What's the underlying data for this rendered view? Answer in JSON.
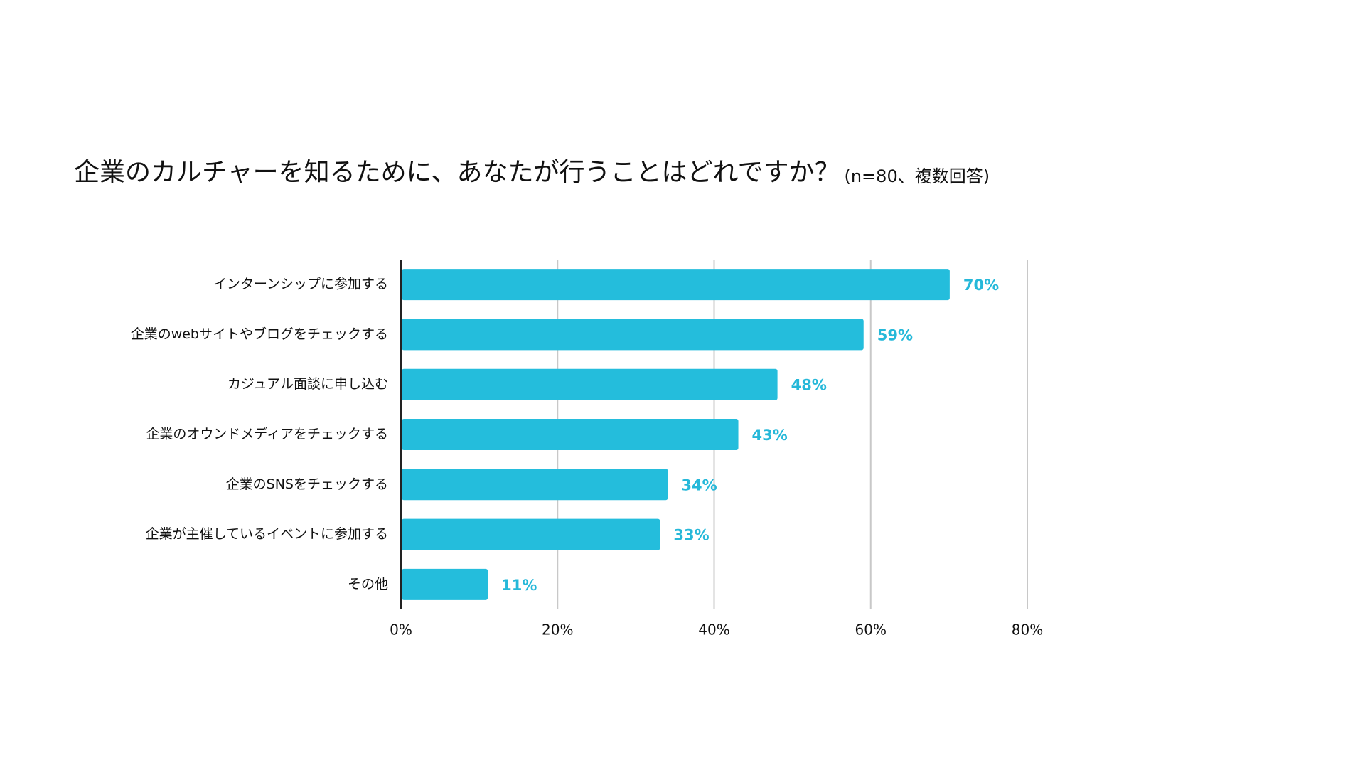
{
  "chart_data": {
    "type": "bar",
    "orientation": "horizontal",
    "title": "企業のカルチャーを知るために、あなたが行うことはどれですか？",
    "subtitle": "(n=80、複数回答)",
    "categories": [
      "インターンシップに参加する",
      "企業のwebサイトやブログをチェックする",
      "カジュアル面談に申し込む",
      "企業のオウンドメディアをチェックする",
      "企業のSNSをチェックする",
      "企業が主催しているイベントに参加する",
      "その他"
    ],
    "values": [
      70,
      59,
      48,
      43,
      34,
      33,
      11
    ],
    "value_labels": [
      "70%",
      "59%",
      "48%",
      "43%",
      "34%",
      "33%",
      "11%"
    ],
    "color": "#24bddc",
    "xlim": [
      0,
      80
    ],
    "xticks": [
      {
        "value": 0,
        "label": "0%"
      },
      {
        "value": 20,
        "label": "20%"
      },
      {
        "value": 40,
        "label": "40%"
      },
      {
        "value": 60,
        "label": "60%"
      },
      {
        "value": 80,
        "label": "80%"
      }
    ],
    "grid": true
  }
}
